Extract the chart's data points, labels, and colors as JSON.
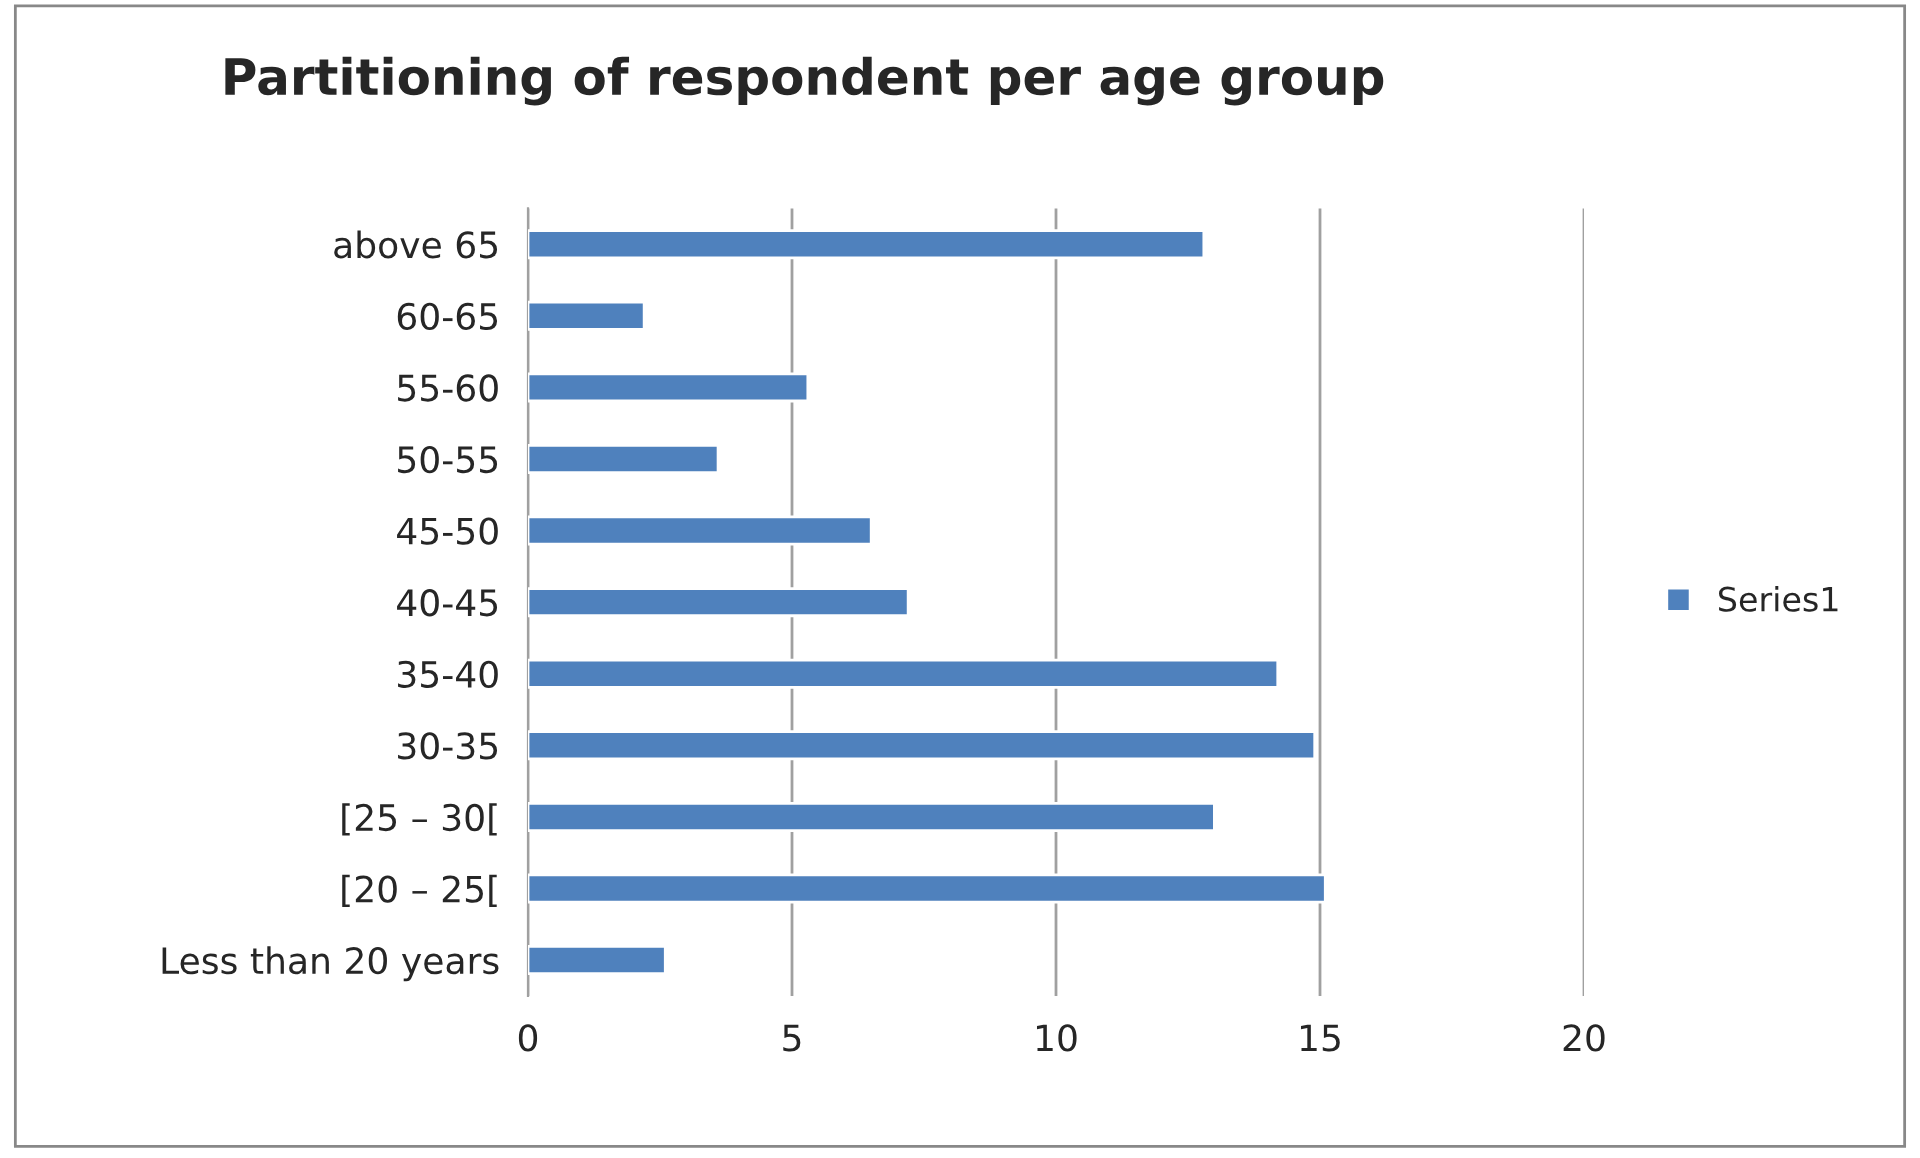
{
  "chart_data": {
    "type": "bar",
    "orientation": "horizontal",
    "title": "Partitioning of respondent per age group",
    "categories": [
      "above 65",
      "60-65",
      "55-60",
      "50-55",
      "45-50",
      "40-45",
      "35-40",
      "30-35",
      "[25 – 30[",
      "[20 – 25[",
      "Less than 20 years"
    ],
    "series": [
      {
        "name": "Series1",
        "color": "#4f81bd",
        "values": [
          12.8,
          2.2,
          5.3,
          3.6,
          6.5,
          7.2,
          14.2,
          14.9,
          13.0,
          15.1,
          2.6
        ]
      }
    ],
    "xlim": [
      0,
      20
    ],
    "xticks": [
      0,
      5,
      10,
      15,
      20
    ],
    "grid": "x",
    "legend": "right"
  }
}
